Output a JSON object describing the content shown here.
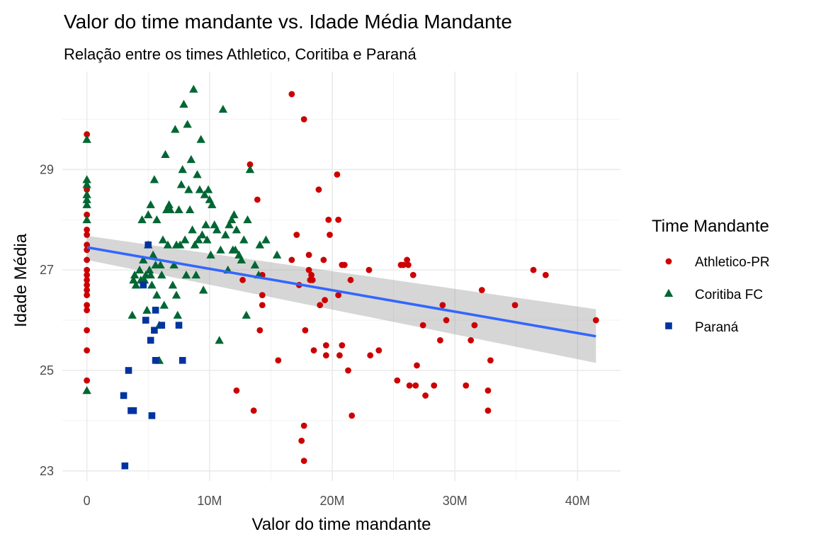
{
  "chart_data": {
    "type": "scatter",
    "title": "Valor do time mandante vs. Idade Média Mandante",
    "subtitle": "Relação entre os times Athletico, Coritiba e Paraná",
    "xlabel": "Valor do time mandante",
    "ylabel": "Idade Média",
    "xlim": [
      -2000000,
      43500000
    ],
    "ylim": [
      22.8,
      30.95
    ],
    "x_ticks": [
      0,
      10000000,
      20000000,
      30000000,
      40000000
    ],
    "x_tick_labels": [
      "0",
      "10M",
      "20M",
      "30M",
      "40M"
    ],
    "y_ticks": [
      23,
      25,
      27,
      29
    ],
    "y_tick_labels": [
      "23",
      "25",
      "27",
      "29"
    ],
    "grid": true,
    "legend": {
      "title": "Time Mandante",
      "position": "right"
    },
    "series": [
      {
        "name": "Athletico-PR",
        "color": "#cc0000",
        "shape": "circle",
        "points": [
          [
            0,
            29.7
          ],
          [
            0,
            28.6
          ],
          [
            0,
            28.1
          ],
          [
            0,
            27.8
          ],
          [
            0,
            27.7
          ],
          [
            0,
            27.5
          ],
          [
            0,
            27.4
          ],
          [
            0,
            27.2
          ],
          [
            0,
            27.0
          ],
          [
            0,
            26.9
          ],
          [
            0,
            26.8
          ],
          [
            0,
            26.7
          ],
          [
            0,
            26.6
          ],
          [
            0,
            26.5
          ],
          [
            0,
            26.3
          ],
          [
            0,
            26.2
          ],
          [
            0,
            25.8
          ],
          [
            0,
            25.4
          ],
          [
            0,
            24.8
          ],
          [
            12200000.0,
            24.6
          ],
          [
            12700000.0,
            26.8
          ],
          [
            13300000.0,
            29.1
          ],
          [
            13600000.0,
            24.2
          ],
          [
            13900000.0,
            28.4
          ],
          [
            14100000.0,
            25.8
          ],
          [
            14300000.0,
            26.9
          ],
          [
            14300000.0,
            26.5
          ],
          [
            14300000.0,
            26.3
          ],
          [
            15600000.0,
            25.2
          ],
          [
            16700000.0,
            27.2
          ],
          [
            16700000.0,
            30.5
          ],
          [
            17100000.0,
            27.7
          ],
          [
            17300000.0,
            26.7
          ],
          [
            17500000.0,
            23.6
          ],
          [
            17700000.0,
            30.0
          ],
          [
            17700000.0,
            23.9
          ],
          [
            17700000.0,
            23.2
          ],
          [
            17800000.0,
            25.8
          ],
          [
            18100000.0,
            27.3
          ],
          [
            18100000.0,
            27.0
          ],
          [
            18200000.0,
            26.8
          ],
          [
            18300000.0,
            26.9
          ],
          [
            18400000.0,
            26.8
          ],
          [
            18500000.0,
            25.4
          ],
          [
            18900000.0,
            28.6
          ],
          [
            19000000.0,
            26.3
          ],
          [
            19300000.0,
            27.2
          ],
          [
            19400000.0,
            26.4
          ],
          [
            19500000.0,
            25.5
          ],
          [
            19500000.0,
            25.3
          ],
          [
            19700000.0,
            28.0
          ],
          [
            19800000.0,
            27.7
          ],
          [
            20400000.0,
            28.9
          ],
          [
            20500000.0,
            26.5
          ],
          [
            20500000.0,
            28.0
          ],
          [
            20600000.0,
            25.3
          ],
          [
            20800000.0,
            27.1
          ],
          [
            20800000.0,
            25.5
          ],
          [
            21000000.0,
            27.1
          ],
          [
            21300000.0,
            25.0
          ],
          [
            21500000.0,
            26.8
          ],
          [
            21600000.0,
            24.1
          ],
          [
            23000000.0,
            27.0
          ],
          [
            23100000.0,
            25.3
          ],
          [
            23800000.0,
            25.4
          ],
          [
            25300000.0,
            24.8
          ],
          [
            25600000.0,
            27.1
          ],
          [
            25800000.0,
            27.1
          ],
          [
            26100000.0,
            27.2
          ],
          [
            26200000.0,
            27.1
          ],
          [
            26300000.0,
            24.7
          ],
          [
            26600000.0,
            26.9
          ],
          [
            26800000.0,
            24.7
          ],
          [
            26900000.0,
            25.1
          ],
          [
            27400000.0,
            25.9
          ],
          [
            27600000.0,
            24.5
          ],
          [
            28300000.0,
            24.7
          ],
          [
            28800000.0,
            25.6
          ],
          [
            29000000.0,
            26.3
          ],
          [
            29300000.0,
            26.0
          ],
          [
            30900000.0,
            24.7
          ],
          [
            31300000.0,
            25.6
          ],
          [
            31600000.0,
            25.9
          ],
          [
            32200000.0,
            26.6
          ],
          [
            32700000.0,
            24.6
          ],
          [
            32700000.0,
            24.2
          ],
          [
            32900000.0,
            25.2
          ],
          [
            34900000.0,
            26.3
          ],
          [
            36400000.0,
            27.0
          ],
          [
            37400000.0,
            26.9
          ],
          [
            41500000.0,
            26.0
          ]
        ]
      },
      {
        "name": "Coritiba FC",
        "color": "#006633",
        "shape": "triangle",
        "points": [
          [
            0,
            29.6
          ],
          [
            0,
            28.8
          ],
          [
            0,
            28.7
          ],
          [
            0,
            28.5
          ],
          [
            0,
            28.4
          ],
          [
            0,
            28.3
          ],
          [
            0,
            28.0
          ],
          [
            0,
            24.6
          ],
          [
            3700000.0,
            26.1
          ],
          [
            3800000.0,
            26.8
          ],
          [
            3900000.0,
            26.9
          ],
          [
            4000000.0,
            26.7
          ],
          [
            4300000.0,
            27.0
          ],
          [
            4400000.0,
            26.8
          ],
          [
            4500000.0,
            28.0
          ],
          [
            4600000.0,
            27.2
          ],
          [
            4700000.0,
            26.8
          ],
          [
            4800000.0,
            26.9
          ],
          [
            4900000.0,
            26.2
          ],
          [
            5000000.0,
            28.1
          ],
          [
            5000000.0,
            27.5
          ],
          [
            5100000.0,
            27.0
          ],
          [
            5200000.0,
            26.9
          ],
          [
            5200000.0,
            28.3
          ],
          [
            5300000.0,
            26.7
          ],
          [
            5400000.0,
            27.3
          ],
          [
            5500000.0,
            28.8
          ],
          [
            5600000.0,
            27.1
          ],
          [
            5700000.0,
            28.0
          ],
          [
            5700000.0,
            26.5
          ],
          [
            5900000.0,
            25.9
          ],
          [
            5900000.0,
            25.2
          ],
          [
            6000000.0,
            27.1
          ],
          [
            6100000.0,
            26.9
          ],
          [
            6200000.0,
            27.6
          ],
          [
            6300000.0,
            26.3
          ],
          [
            6400000.0,
            29.3
          ],
          [
            6500000.0,
            28.2
          ],
          [
            6600000.0,
            27.5
          ],
          [
            6700000.0,
            28.3
          ],
          [
            6800000.0,
            28.2
          ],
          [
            7000000.0,
            26.7
          ],
          [
            7100000.0,
            27.1
          ],
          [
            7200000.0,
            29.8
          ],
          [
            7300000.0,
            27.5
          ],
          [
            7300000.0,
            26.5
          ],
          [
            7400000.0,
            26.1
          ],
          [
            7500000.0,
            28.2
          ],
          [
            7600000.0,
            27.5
          ],
          [
            7700000.0,
            28.7
          ],
          [
            7800000.0,
            29.0
          ],
          [
            7900000.0,
            30.3
          ],
          [
            8000000.0,
            27.6
          ],
          [
            8100000.0,
            26.9
          ],
          [
            8200000.0,
            29.9
          ],
          [
            8300000.0,
            28.6
          ],
          [
            8400000.0,
            28.2
          ],
          [
            8500000.0,
            29.2
          ],
          [
            8600000.0,
            27.8
          ],
          [
            8700000.0,
            30.6
          ],
          [
            8800000.0,
            27.5
          ],
          [
            8900000.0,
            26.9
          ],
          [
            9000000.0,
            28.9
          ],
          [
            9100000.0,
            27.6
          ],
          [
            9200000.0,
            28.6
          ],
          [
            9300000.0,
            29.6
          ],
          [
            9400000.0,
            27.7
          ],
          [
            9500000.0,
            26.6
          ],
          [
            9600000.0,
            28.5
          ],
          [
            9700000.0,
            27.9
          ],
          [
            9800000.0,
            27.6
          ],
          [
            9900000.0,
            28.6
          ],
          [
            10000000.0,
            28.4
          ],
          [
            10100000.0,
            27.3
          ],
          [
            10200000.0,
            28.3
          ],
          [
            10400000.0,
            27.9
          ],
          [
            10600000.0,
            27.8
          ],
          [
            10800000.0,
            25.6
          ],
          [
            10900000.0,
            27.4
          ],
          [
            11100000.0,
            30.2
          ],
          [
            11300000.0,
            27.7
          ],
          [
            11500000.0,
            27.0
          ],
          [
            11600000.0,
            27.9
          ],
          [
            11800000.0,
            28.0
          ],
          [
            11900000.0,
            27.4
          ],
          [
            12000000.0,
            28.1
          ],
          [
            12100000.0,
            27.4
          ],
          [
            12200000.0,
            27.8
          ],
          [
            12400000.0,
            27.3
          ],
          [
            12600000.0,
            27.2
          ],
          [
            12800000.0,
            27.6
          ],
          [
            13000000.0,
            26.1
          ],
          [
            13100000.0,
            28.0
          ],
          [
            13300000.0,
            29.0
          ],
          [
            13700000.0,
            27.1
          ],
          [
            14000000.0,
            26.9
          ],
          [
            14100000.0,
            27.5
          ],
          [
            14600000.0,
            27.6
          ],
          [
            15500000.0,
            27.3
          ]
        ]
      },
      {
        "name": "Paraná",
        "color": "#0033a0",
        "shape": "square",
        "points": [
          [
            3000000.0,
            24.5
          ],
          [
            3100000.0,
            23.1
          ],
          [
            3400000.0,
            25.0
          ],
          [
            3600000.0,
            24.2
          ],
          [
            3800000.0,
            24.2
          ],
          [
            4600000.0,
            26.7
          ],
          [
            4800000.0,
            26.0
          ],
          [
            5000000.0,
            27.5
          ],
          [
            5200000.0,
            25.6
          ],
          [
            5300000.0,
            24.1
          ],
          [
            5500000.0,
            25.8
          ],
          [
            5600000.0,
            26.2
          ],
          [
            5600000.0,
            25.2
          ],
          [
            6100000.0,
            25.9
          ],
          [
            7500000.0,
            25.9
          ],
          [
            7800000.0,
            25.2
          ]
        ]
      }
    ],
    "fit_line": {
      "type": "linear",
      "color": "#3366ff",
      "x": [
        0,
        41500000
      ],
      "y": [
        27.45,
        25.68
      ],
      "ci_lower": [
        27.2,
        25.15
      ],
      "ci_upper": [
        27.68,
        26.22
      ]
    }
  }
}
